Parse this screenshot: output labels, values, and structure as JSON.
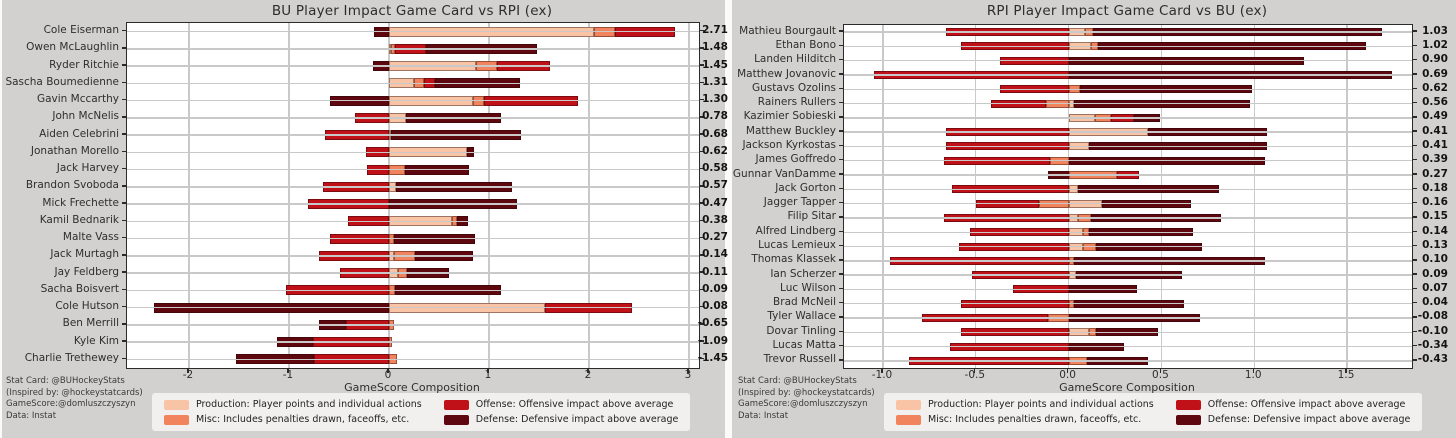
{
  "colors": {
    "background": "#d3d1d0",
    "plot_background": "#ffffff",
    "grid": "#c9c9c9",
    "production": "#f9c4a5",
    "misc": "#f1845c",
    "offense": "#bf1117",
    "defense": "#5e070e"
  },
  "footer": {
    "lines": [
      "Stat Card: @BUHockeyStats",
      "(Inspired by: @hockeystatcards)",
      "GameScore:@domluszczyszyn",
      "Data: Instat"
    ]
  },
  "legend": {
    "items": [
      {
        "key": "production",
        "label": "Production: Player points and individual actions"
      },
      {
        "key": "offense",
        "label": "Offense: Offensive impact above average"
      },
      {
        "key": "misc",
        "label": "Misc: Includes penalties drawn, faceoffs, etc."
      },
      {
        "key": "defense",
        "label": "Defense: Defensive impact above average"
      }
    ]
  },
  "chart_data": [
    {
      "type": "bar",
      "orientation": "horizontal",
      "stacked": true,
      "grid": true,
      "title": "BU Player Impact Game Card vs RPI (ex)",
      "xlabel": "GameScore Composition",
      "xlim": [
        -2.62,
        3.1
      ],
      "xticks": [
        -2,
        -1,
        0,
        1,
        2,
        3
      ],
      "xtick_labels": [
        "-2",
        "-1",
        "0",
        "1",
        "2",
        "3"
      ],
      "series_order": [
        "production",
        "misc",
        "offense",
        "defense"
      ],
      "players": [
        {
          "name": "Cole Eiserman",
          "total": "2.71",
          "production": 2.05,
          "misc": 0.21,
          "offense": 0.6,
          "defense": -0.15
        },
        {
          "name": "Owen McLaughlin",
          "total": "1.48",
          "production": 0.02,
          "misc": 0.04,
          "offense": 0.31,
          "defense": 1.11
        },
        {
          "name": "Ryder Ritchie",
          "total": "1.45",
          "production": 0.87,
          "misc": 0.21,
          "offense": 0.53,
          "defense": -0.16
        },
        {
          "name": "Sascha Boumedienne",
          "total": "1.31",
          "production": 0.25,
          "misc": 0.1,
          "offense": 0.11,
          "defense": 0.85
        },
        {
          "name": "Gavin Mccarthy",
          "total": "1.30",
          "production": 0.84,
          "misc": 0.11,
          "offense": 0.94,
          "defense": -0.59
        },
        {
          "name": "John McNelis",
          "total": "0.78",
          "production": 0.17,
          "misc": 0,
          "offense": -0.34,
          "defense": 0.95
        },
        {
          "name": "Aiden Celebrini",
          "total": "0.68",
          "production": 0.02,
          "misc": 0,
          "offense": -0.64,
          "defense": 1.3
        },
        {
          "name": "Jonathan Morello",
          "total": "0.62",
          "production": 0.78,
          "misc": 0,
          "offense": -0.23,
          "defense": 0.07
        },
        {
          "name": "Jack Harvey",
          "total": "0.58",
          "production": 0,
          "misc": 0.16,
          "offense": -0.22,
          "defense": 0.64
        },
        {
          "name": "Brandon Svoboda",
          "total": "0.57",
          "production": 0.07,
          "misc": 0,
          "offense": -0.66,
          "defense": 1.16
        },
        {
          "name": "Mick Frechette",
          "total": "0.47",
          "production": 0,
          "misc": 0,
          "offense": -0.81,
          "defense": 1.28
        },
        {
          "name": "Kamil Bednarik",
          "total": "0.38",
          "production": 0.63,
          "misc": 0.05,
          "offense": -0.41,
          "defense": 0.11
        },
        {
          "name": "Malte Vass",
          "total": "0.27",
          "production": 0,
          "misc": 0.05,
          "offense": -0.59,
          "defense": 0.81
        },
        {
          "name": "Jack Murtagh",
          "total": "0.14",
          "production": 0.05,
          "misc": 0.21,
          "offense": -0.7,
          "defense": 0.58
        },
        {
          "name": "Jay Feldberg",
          "total": "0.11",
          "production": 0.09,
          "misc": 0.09,
          "offense": -0.49,
          "defense": 0.42
        },
        {
          "name": "Sacha Boisvert",
          "total": "0.09",
          "production": 0,
          "misc": 0.06,
          "offense": -1.03,
          "defense": 1.06
        },
        {
          "name": "Cole Hutson",
          "total": "0.08",
          "production": 1.56,
          "misc": 0,
          "offense": 0.87,
          "defense": -2.35
        },
        {
          "name": "Ben Merrill",
          "total": "-0.65",
          "production": 0,
          "misc": 0.05,
          "offense": -0.43,
          "defense": -0.27
        },
        {
          "name": "Kyle Kim",
          "total": "-1.09",
          "production": 0,
          "misc": 0.03,
          "offense": -0.76,
          "defense": -0.36
        },
        {
          "name": "Charlie Trethewey",
          "total": "-1.45",
          "production": 0,
          "misc": 0.08,
          "offense": -0.75,
          "defense": -0.78
        }
      ]
    },
    {
      "type": "bar",
      "orientation": "horizontal",
      "stacked": true,
      "grid": true,
      "title": "RPI Player Impact Game Card vs BU (ex)",
      "xlabel": "GameScore Composition",
      "xlim": [
        -1.21,
        1.85
      ],
      "xticks": [
        -1.0,
        -0.5,
        0.0,
        0.5,
        1.0,
        1.5
      ],
      "xtick_labels": [
        "-1.0",
        "-0.5",
        "0.0",
        "0.5",
        "1.0",
        "1.5"
      ],
      "series_order": [
        "production",
        "misc",
        "offense",
        "defense"
      ],
      "players": [
        {
          "name": "Mathieu Bourgault",
          "total": "1.03",
          "production": 0.09,
          "misc": 0.04,
          "offense": -0.66,
          "defense": 1.56
        },
        {
          "name": "Ethan Bono",
          "total": "1.02",
          "production": 0.12,
          "misc": 0.04,
          "offense": -0.58,
          "defense": 1.44
        },
        {
          "name": "Landen Hilditch",
          "total": "0.90",
          "production": 0,
          "misc": 0,
          "offense": -0.37,
          "defense": 1.27
        },
        {
          "name": "Matthew Jovanovic",
          "total": "0.69",
          "production": 0,
          "misc": 0,
          "offense": -1.05,
          "defense": 1.74
        },
        {
          "name": "Gustavs Ozolins",
          "total": "0.62",
          "production": 0,
          "misc": 0.06,
          "offense": -0.37,
          "defense": 0.93
        },
        {
          "name": "Rainers Rullers",
          "total": "0.56",
          "production": 0.03,
          "misc": -0.12,
          "offense": -0.3,
          "defense": 0.95
        },
        {
          "name": "Kazimier Sobieski",
          "total": "0.49",
          "production": 0.14,
          "misc": 0.09,
          "offense": 0.12,
          "defense": 0.14
        },
        {
          "name": "Matthew Buckley",
          "total": "0.41",
          "production": 0.43,
          "misc": 0,
          "offense": -0.66,
          "defense": 0.64
        },
        {
          "name": "Jackson Kyrkostas",
          "total": "0.41",
          "production": 0.11,
          "misc": 0,
          "offense": -0.66,
          "defense": 0.96
        },
        {
          "name": "James Goffredo",
          "total": "0.39",
          "production": 0,
          "misc": -0.1,
          "offense": -0.57,
          "defense": 1.06
        },
        {
          "name": "Gunnar VanDamme",
          "total": "0.27",
          "production": 0,
          "misc": 0.26,
          "offense": 0.12,
          "defense": -0.11
        },
        {
          "name": "Jack Gorton",
          "total": "0.18",
          "production": 0.05,
          "misc": 0,
          "offense": -0.63,
          "defense": 0.76
        },
        {
          "name": "Jagger Tapper",
          "total": "0.16",
          "production": 0.18,
          "misc": -0.16,
          "offense": -0.34,
          "defense": 0.48
        },
        {
          "name": "Filip Sitar",
          "total": "0.15",
          "production": 0.05,
          "misc": 0.07,
          "offense": -0.67,
          "defense": 0.7
        },
        {
          "name": "Alfred Lindberg",
          "total": "0.14",
          "production": 0.08,
          "misc": 0.03,
          "offense": -0.53,
          "defense": 0.56
        },
        {
          "name": "Lucas Lemieux",
          "total": "0.13",
          "production": 0.08,
          "misc": 0.07,
          "offense": -0.59,
          "defense": 0.57
        },
        {
          "name": "Thomas Klassek",
          "total": "0.10",
          "production": 0,
          "misc": 0.03,
          "offense": -0.96,
          "defense": 1.03
        },
        {
          "name": "Ian Scherzer",
          "total": "0.09",
          "production": 0.04,
          "misc": 0,
          "offense": -0.52,
          "defense": 0.57
        },
        {
          "name": "Luc Wilson",
          "total": "0.07",
          "production": 0,
          "misc": 0,
          "offense": -0.3,
          "defense": 0.37
        },
        {
          "name": "Brad McNeil",
          "total": "0.04",
          "production": 0,
          "misc": 0.03,
          "offense": -0.58,
          "defense": 0.59
        },
        {
          "name": "Tyler Wallace",
          "total": "-0.08",
          "production": 0,
          "misc": -0.11,
          "offense": -0.68,
          "defense": 0.71
        },
        {
          "name": "Dovar Tinling",
          "total": "-0.10",
          "production": 0.11,
          "misc": 0.04,
          "offense": -0.58,
          "defense": 0.33
        },
        {
          "name": "Lucas Matta",
          "total": "-0.34",
          "production": 0,
          "misc": 0,
          "offense": -0.64,
          "defense": 0.3
        },
        {
          "name": "Trevor Russell",
          "total": "-0.43",
          "production": 0,
          "misc": 0.1,
          "offense": -0.86,
          "defense": 0.33
        }
      ]
    }
  ]
}
